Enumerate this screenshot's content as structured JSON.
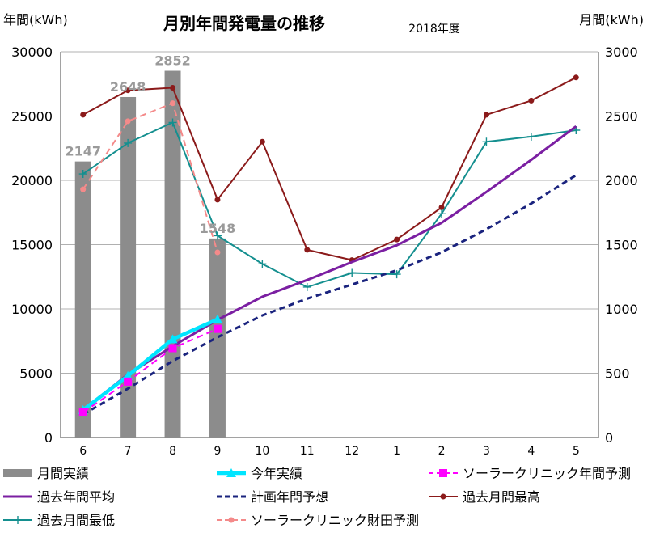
{
  "chart_data": {
    "type": "bar+line",
    "title": "月別年間発電量の推移",
    "subtitle": "2018年度",
    "ylabel_left": "年間(kWh)",
    "ylabel_right": "月間(kWh)",
    "categories": [
      "6",
      "7",
      "8",
      "9",
      "10",
      "11",
      "12",
      "1",
      "2",
      "3",
      "4",
      "5"
    ],
    "ylim_left": [
      0,
      30000
    ],
    "ylim_right": [
      0,
      3000
    ],
    "yticks_left": [
      "0",
      "5000",
      "10000",
      "15000",
      "20000",
      "25000",
      "30000"
    ],
    "yticks_right": [
      "0",
      "500",
      "1000",
      "1500",
      "2000",
      "2500",
      "3000"
    ],
    "grid": true,
    "bars": {
      "name": "月間実績",
      "axis": "right",
      "color": "#8c8c8c",
      "values": [
        2147,
        2648,
        2852,
        1548,
        null,
        null,
        null,
        null,
        null,
        null,
        null,
        null
      ],
      "labels": [
        "2147",
        "2648",
        "2852",
        "1548"
      ]
    },
    "series": [
      {
        "name": "今年実績",
        "axis": "left",
        "color": "#00e5ff",
        "style": "solid",
        "marker": "triangle",
        "values": [
          2147,
          4795,
          7647,
          9195,
          null,
          null,
          null,
          null,
          null,
          null,
          null,
          null
        ]
      },
      {
        "name": "ソーラークリニック年間予測",
        "axis": "left",
        "color": "#ff00ff",
        "style": "dash",
        "marker": "square",
        "values": [
          1950,
          4350,
          6950,
          8450,
          null,
          null,
          null,
          null,
          null,
          null,
          null,
          null
        ]
      },
      {
        "name": "過去年間平均",
        "axis": "left",
        "color": "#7b1fa2",
        "style": "solid",
        "marker": "none",
        "values": [
          2150,
          4900,
          7100,
          9150,
          10950,
          12250,
          13650,
          14950,
          16700,
          19100,
          21600,
          24200
        ]
      },
      {
        "name": "計画年間予想",
        "axis": "left",
        "color": "#1a237e",
        "style": "dash",
        "marker": "none",
        "values": [
          1800,
          3800,
          5950,
          7800,
          9500,
          10800,
          11900,
          13000,
          14400,
          16200,
          18200,
          20400
        ]
      },
      {
        "name": "過去月間最高",
        "axis": "right",
        "color": "#8b1a1a",
        "style": "solid",
        "marker": "circle",
        "values": [
          2510,
          2700,
          2720,
          1850,
          2300,
          1460,
          1380,
          1540,
          1790,
          2510,
          2620,
          2800
        ]
      },
      {
        "name": "過去月間最低",
        "axis": "right",
        "color": "#148f8f",
        "style": "solid",
        "marker": "plus",
        "values": [
          2050,
          2290,
          2450,
          1570,
          1350,
          1170,
          1280,
          1270,
          1740,
          2300,
          2340,
          2390
        ]
      },
      {
        "name": "ソーラークリニック財田予測",
        "axis": "right",
        "color": "#f48a8a",
        "style": "dash",
        "marker": "circle",
        "values": [
          1930,
          2460,
          2600,
          1440,
          null,
          null,
          null,
          null,
          null,
          null,
          null,
          null
        ]
      }
    ],
    "legend": {
      "placement": "bottom",
      "entries": [
        "月間実績",
        "今年実績",
        "ソーラークリニック年間予測",
        "過去年間平均",
        "計画年間予想",
        "過去月間最高",
        "過去月間最低",
        "ソーラークリニック財田予測"
      ]
    }
  }
}
